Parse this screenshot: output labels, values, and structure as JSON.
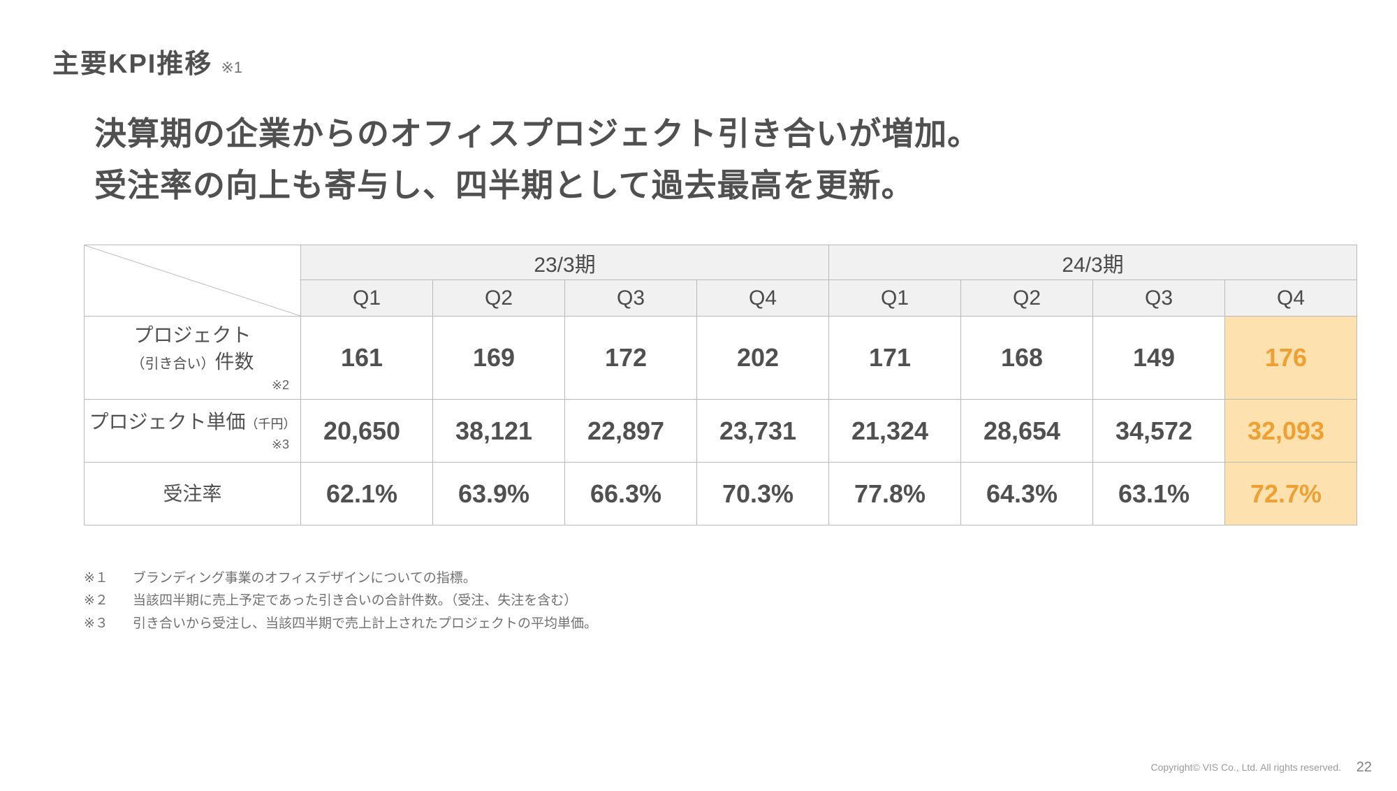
{
  "colors": {
    "text": "#505050",
    "border": "#b9b9b9",
    "header_bg": "#f1f1f1",
    "accent": "#f0a030",
    "accent_bg": "#fde2b0"
  },
  "title": {
    "main": "主要KPI推移",
    "note": "※1"
  },
  "headline_line1": "決算期の企業からのオフィスプロジェクト引き合いが増加。",
  "headline_line2": "受注率の向上も寄与し、四半期として過去最高を更新。",
  "table": {
    "periods": [
      "23/3期",
      "24/3期"
    ],
    "quarters": [
      "Q1",
      "Q2",
      "Q3",
      "Q4",
      "Q1",
      "Q2",
      "Q3",
      "Q4"
    ],
    "rows": [
      {
        "label_main": "プロジェクト",
        "label_sub_pre": "（引き合い）",
        "label_sub_post": "件数",
        "foot_mark": "※2",
        "values": [
          "161",
          "169",
          "172",
          "202",
          "171",
          "168",
          "149",
          "176"
        ],
        "highlight_last": true
      },
      {
        "label_main": "プロジェクト単価",
        "label_sub_pre": "",
        "label_sub_post": "（千円）",
        "foot_mark": "※3",
        "values": [
          "20,650",
          "38,121",
          "22,897",
          "23,731",
          "21,324",
          "28,654",
          "34,572",
          "32,093"
        ],
        "highlight_last": true
      },
      {
        "label_main": "受注率",
        "label_sub_pre": "",
        "label_sub_post": "",
        "foot_mark": "",
        "values": [
          "62.1%",
          "63.9%",
          "66.3%",
          "70.3%",
          "77.8%",
          "64.3%",
          "63.1%",
          "72.7%"
        ],
        "highlight_last": true
      }
    ]
  },
  "footnotes": [
    {
      "key": "※１",
      "text": "ブランディング事業のオフィスデザインについての指標。"
    },
    {
      "key": "※２",
      "text": "当該四半期に売上予定であった引き合いの合計件数。（受注、失注を含む）"
    },
    {
      "key": "※３",
      "text": "引き合いから受注し、当該四半期で売上計上されたプロジェクトの平均単価。"
    }
  ],
  "copyright": "Copyright© VIS Co., Ltd. All rights reserved.",
  "page_number": "22"
}
